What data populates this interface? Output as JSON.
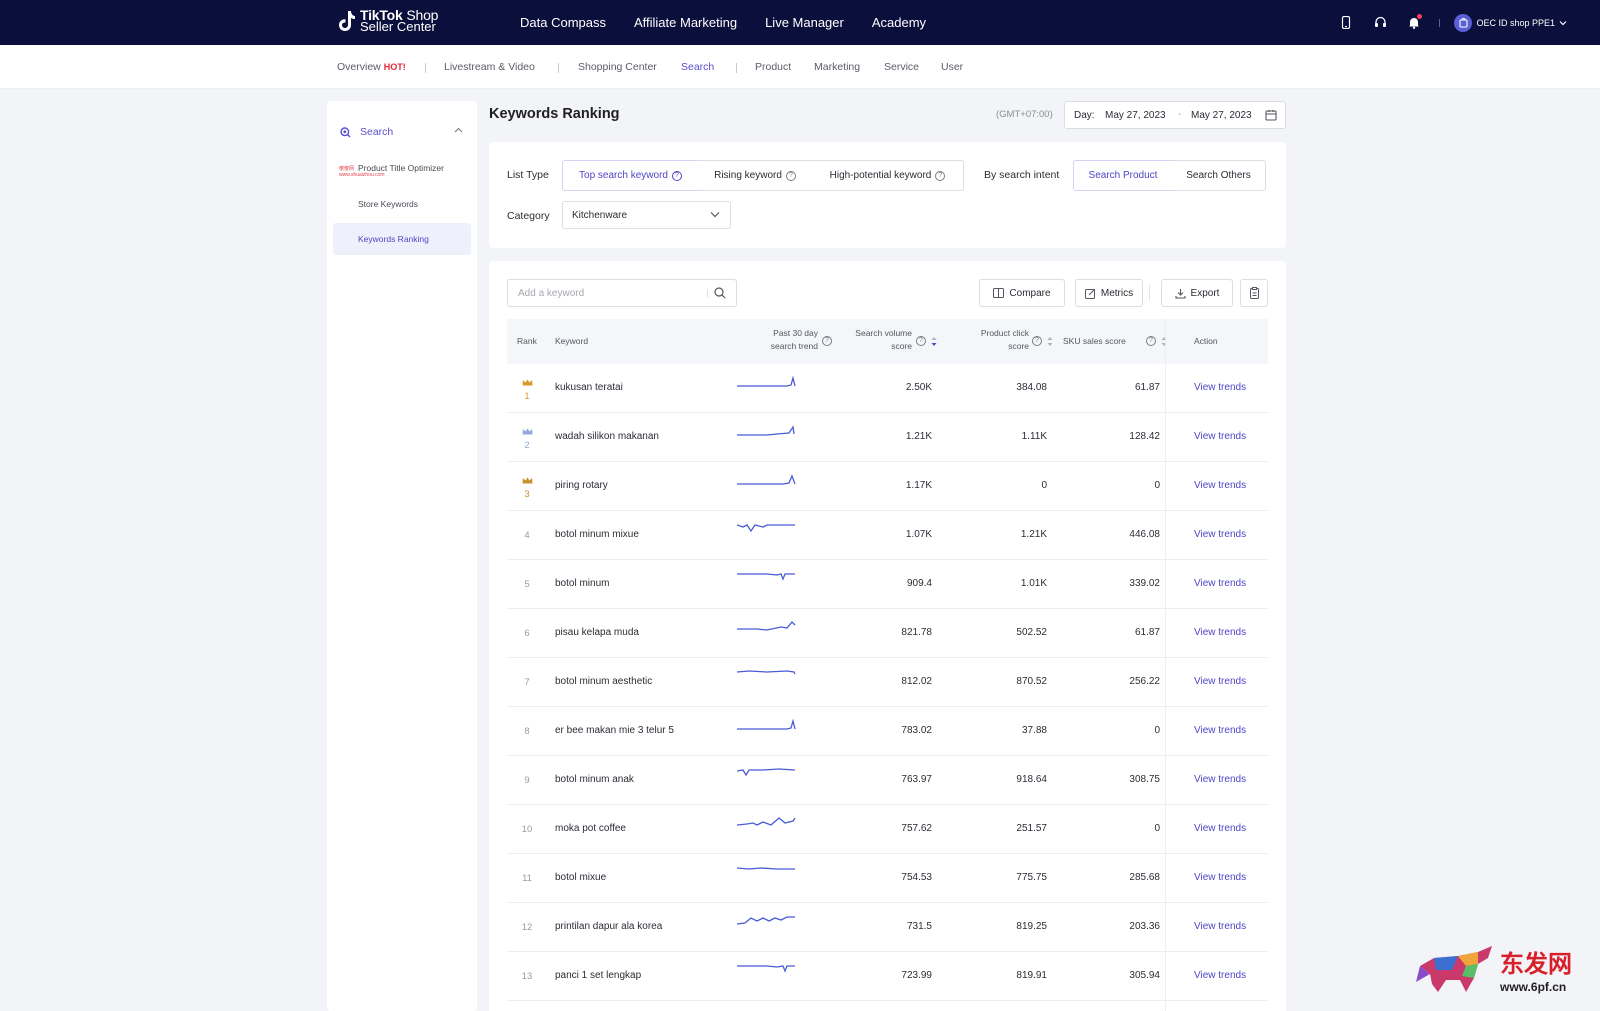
{
  "topbar": {
    "logo_title": "TikTok",
    "logo_title2": "Shop",
    "logo_subtitle": "Seller Center",
    "nav": [
      "Data Compass",
      "Affiliate Marketing",
      "Live Manager",
      "Academy"
    ],
    "shop_name": "OEC ID shop PPE1"
  },
  "subnav": {
    "overview": "Overview",
    "hot": "HOT!",
    "livestream": "Livestream & Video",
    "shopping": "Shopping Center",
    "search": "Search",
    "product": "Product",
    "marketing": "Marketing",
    "service": "Service",
    "user": "User"
  },
  "sidebar": {
    "header": "Search",
    "items": [
      "Product Title Optimizer",
      "Store Keywords",
      "Keywords Ranking"
    ],
    "watermark_line1": "傻傻网",
    "watermark_line2": "www.shuaizhou.com"
  },
  "page": {
    "title": "Keywords Ranking",
    "timezone": "(GMT+07:00)",
    "date_label": "Day:",
    "date_start": "May 27, 2023",
    "date_sep": "-",
    "date_end": "May 27, 2023"
  },
  "filters": {
    "list_type_label": "List Type",
    "list_types": [
      "Top search keyword",
      "Rising keyword",
      "High-potential keyword"
    ],
    "intent_label": "By search intent",
    "intents": [
      "Search Product",
      "Search Others"
    ],
    "category_label": "Category",
    "category_value": "Kitchenware"
  },
  "toolbar": {
    "search_placeholder": "Add a keyword",
    "compare": "Compare",
    "metrics": "Metrics",
    "export": "Export"
  },
  "table": {
    "headers": {
      "rank": "Rank",
      "keyword": "Keyword",
      "trend_1": "Past 30 day",
      "trend_2": "search trend",
      "volume_1": "Search volume",
      "volume_2": "score",
      "click_1": "Product click",
      "click_2": "score",
      "sku": "SKU sales score",
      "action": "Action"
    },
    "rows": [
      {
        "rank": "1",
        "keyword": "kukusan teratai",
        "volume": "2.50K",
        "click": "384.08",
        "sku": "61.87",
        "action": "View trends"
      },
      {
        "rank": "2",
        "keyword": "wadah silikon makanan",
        "volume": "1.21K",
        "click": "1.11K",
        "sku": "128.42",
        "action": "View trends"
      },
      {
        "rank": "3",
        "keyword": "piring rotary",
        "volume": "1.17K",
        "click": "0",
        "sku": "0",
        "action": "View trends"
      },
      {
        "rank": "4",
        "keyword": "botol minum mixue",
        "volume": "1.07K",
        "click": "1.21K",
        "sku": "446.08",
        "action": "View trends"
      },
      {
        "rank": "5",
        "keyword": "botol minum",
        "volume": "909.4",
        "click": "1.01K",
        "sku": "339.02",
        "action": "View trends"
      },
      {
        "rank": "6",
        "keyword": "pisau kelapa muda",
        "volume": "821.78",
        "click": "502.52",
        "sku": "61.87",
        "action": "View trends"
      },
      {
        "rank": "7",
        "keyword": "botol minum aesthetic",
        "volume": "812.02",
        "click": "870.52",
        "sku": "256.22",
        "action": "View trends"
      },
      {
        "rank": "8",
        "keyword": "er bee makan mie 3 telur 5",
        "volume": "783.02",
        "click": "37.88",
        "sku": "0",
        "action": "View trends"
      },
      {
        "rank": "9",
        "keyword": "botol minum anak",
        "volume": "763.97",
        "click": "918.64",
        "sku": "308.75",
        "action": "View trends"
      },
      {
        "rank": "10",
        "keyword": "moka pot coffee",
        "volume": "757.62",
        "click": "251.57",
        "sku": "0",
        "action": "View trends"
      },
      {
        "rank": "11",
        "keyword": "botol mixue",
        "volume": "754.53",
        "click": "775.75",
        "sku": "285.68",
        "action": "View trends"
      },
      {
        "rank": "12",
        "keyword": "printilan dapur ala korea",
        "volume": "731.5",
        "click": "819.25",
        "sku": "203.36",
        "action": "View trends"
      },
      {
        "rank": "13",
        "keyword": "panci 1 set lengkap",
        "volume": "723.99",
        "click": "819.91",
        "sku": "305.94",
        "action": "View trends"
      }
    ]
  },
  "watermark": {
    "text": "东发网",
    "url": "www.6pf.cn"
  },
  "colors": {
    "topbar": "#0b0f3b",
    "accent": "#4f45c6",
    "gold": "#d99a2b",
    "hot": "#e5293a"
  }
}
